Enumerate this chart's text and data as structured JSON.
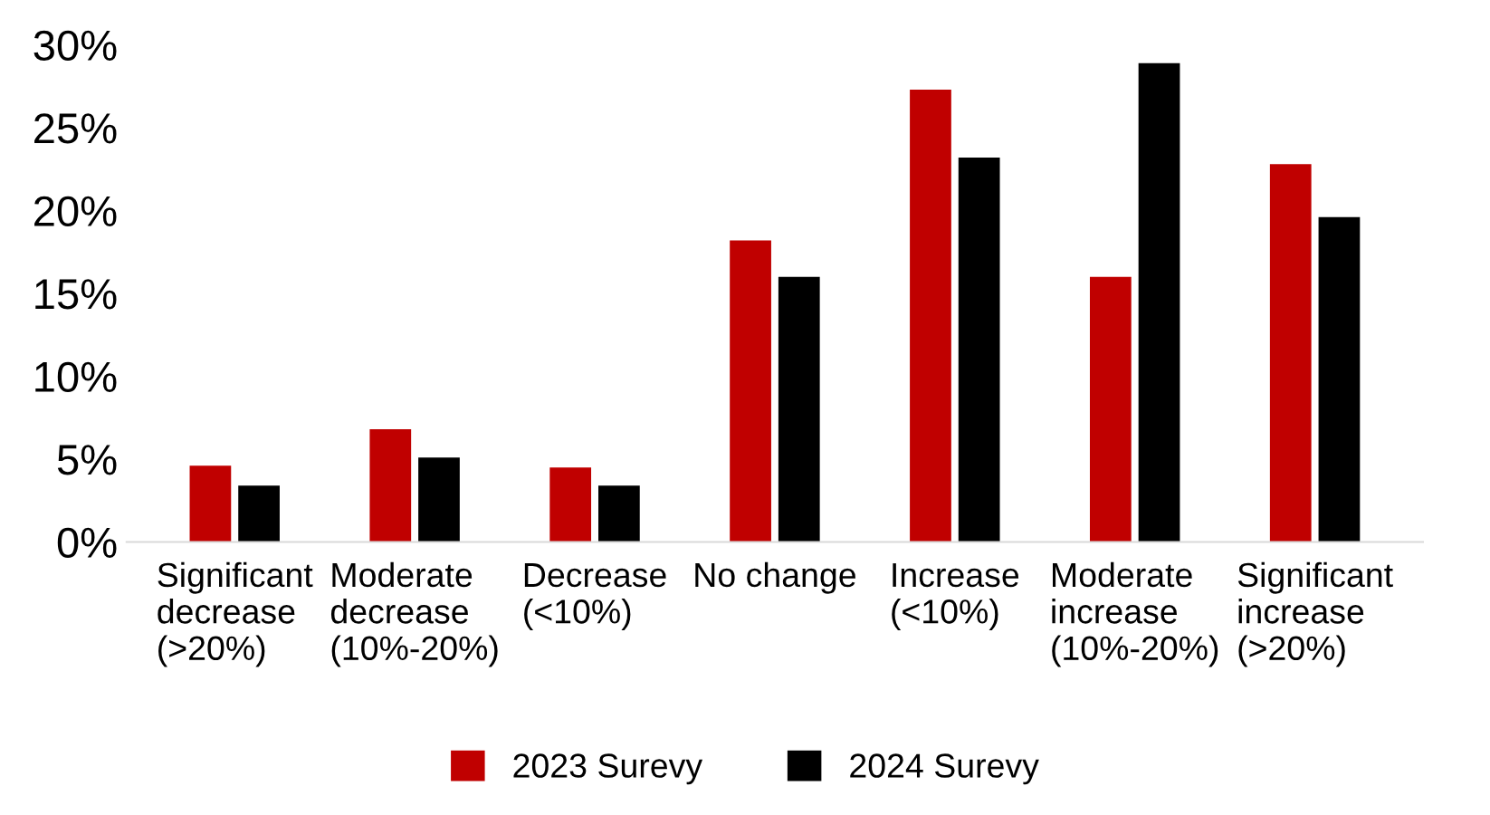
{
  "chart_data": {
    "type": "bar",
    "categories": [
      "Significant\ndecrease\n(>20%)",
      "Moderate\ndecrease\n(10%-20%)",
      "Decrease\n(<10%)",
      "No change",
      "Increase\n(<10%)",
      "Moderate\nincrease\n(10%-20%)",
      "Significant\nincrease\n(>20%)"
    ],
    "series": [
      {
        "name": "2023 Surevy",
        "color": "#c00000",
        "values": [
          4.6,
          6.8,
          4.5,
          18.2,
          27.3,
          16.0,
          22.8
        ]
      },
      {
        "name": "2024 Surevy",
        "color": "#000000",
        "values": [
          3.4,
          5.1,
          3.4,
          16.0,
          23.2,
          28.9,
          19.6
        ]
      }
    ],
    "ylim": [
      0,
      30
    ],
    "yticks": [
      {
        "value": 0,
        "label": "0%"
      },
      {
        "value": 5,
        "label": "5%"
      },
      {
        "value": 10,
        "label": "10%"
      },
      {
        "value": 15,
        "label": "15%"
      },
      {
        "value": 20,
        "label": "20%"
      },
      {
        "value": 25,
        "label": "25%"
      },
      {
        "value": 30,
        "label": "30%"
      }
    ],
    "grid": false,
    "legend": "bottom"
  }
}
